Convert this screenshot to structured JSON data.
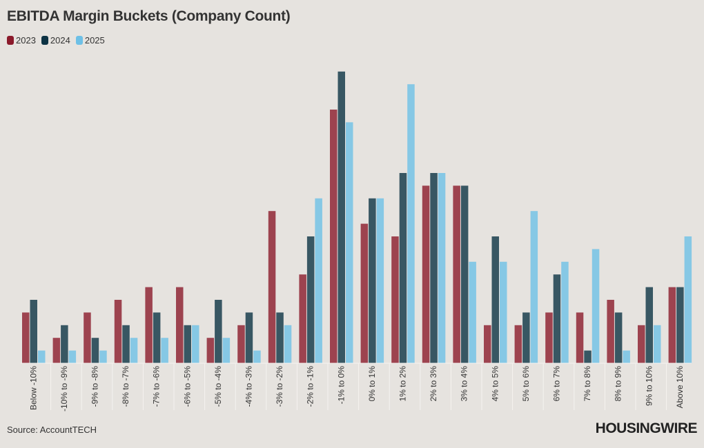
{
  "chart_data": {
    "type": "bar",
    "title": "EBITDA Margin Buckets (Company Count)",
    "categories": [
      "Below -10%",
      "-10% to -9%",
      "-9% to -8%",
      "-8% to -7%",
      "-7% to -6%",
      "-6% to -5%",
      "-5% to -4%",
      "-4% to -3%",
      "-3% to -2%",
      "-2% to -1%",
      "-1% to 0%",
      "0% to 1%",
      "1% to 2%",
      "2% to 3%",
      "3% to 4%",
      "4% to 5%",
      "5% to 6%",
      "6% to 7%",
      "7% to 8%",
      "8% to 9%",
      "9% to 10%",
      "Above 10%"
    ],
    "series": [
      {
        "name": "2023",
        "color": "#8b1a2b",
        "values": [
          4,
          2,
          4,
          5,
          6,
          6,
          2,
          3,
          12,
          7,
          20,
          11,
          10,
          14,
          14,
          3,
          3,
          4,
          4,
          5,
          3,
          6
        ]
      },
      {
        "name": "2024",
        "color": "#0d3344",
        "values": [
          5,
          3,
          2,
          3,
          4,
          3,
          5,
          4,
          4,
          10,
          23,
          13,
          15,
          15,
          14,
          10,
          4,
          7,
          1,
          4,
          6,
          6
        ]
      },
      {
        "name": "2025",
        "color": "#6ec0e6",
        "values": [
          1,
          1,
          1,
          2,
          2,
          3,
          2,
          1,
          3,
          13,
          19,
          13,
          22,
          15,
          8,
          8,
          12,
          8,
          9,
          1,
          3,
          10
        ]
      }
    ],
    "xlabel": "",
    "ylabel": "",
    "ylim": [
      0,
      23
    ],
    "grid": false,
    "legend": "top-left"
  },
  "source": "Source: AccountTECH",
  "logo": "HOUSINGWIRE"
}
